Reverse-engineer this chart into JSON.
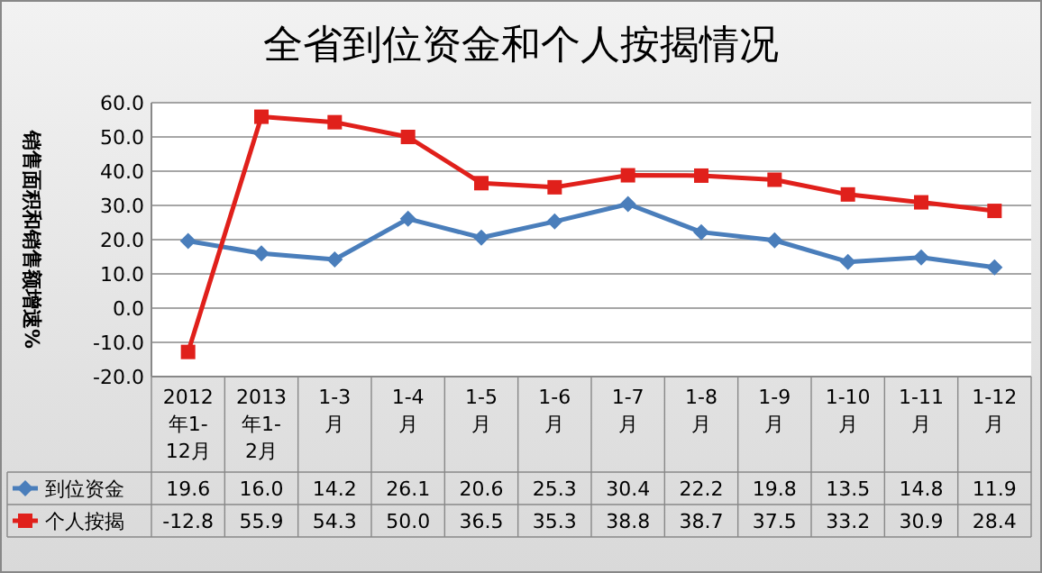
{
  "chart_data": {
    "type": "line",
    "title": "全省到位资金和个人按揭情况",
    "ylabel": "销售面积和销售额增速%",
    "categories": [
      "2012年1-12月",
      "2013年1-2月",
      "1-3月",
      "1-4月",
      "1-5月",
      "1-6月",
      "1-7月",
      "1-8月",
      "1-9月",
      "1-10月",
      "1-11月",
      "1-12月"
    ],
    "series": [
      {
        "name": "到位资金",
        "color": "#4a7ebb",
        "marker": "diamond",
        "values": [
          19.6,
          16.0,
          14.2,
          26.1,
          20.6,
          25.3,
          30.4,
          22.2,
          19.8,
          13.5,
          14.8,
          11.9
        ],
        "value_labels": [
          "19.6",
          "16.0",
          "14.2",
          "26.1",
          "20.6",
          "25.3",
          "30.4",
          "22.2",
          "19.8",
          "13.5",
          "14.8",
          "11.9"
        ]
      },
      {
        "name": "个人按揭",
        "color": "#e0201b",
        "marker": "square",
        "values": [
          -12.8,
          55.9,
          54.3,
          50.0,
          36.5,
          35.3,
          38.8,
          38.7,
          37.5,
          33.2,
          30.9,
          28.4
        ],
        "value_labels": [
          "-12.8",
          "55.9",
          "54.3",
          "50.0",
          "36.5",
          "35.3",
          "38.8",
          "38.7",
          "37.5",
          "33.2",
          "30.9",
          "28.4"
        ]
      }
    ],
    "ylim": [
      -20,
      60
    ],
    "yticks": [
      {
        "value": -20,
        "label": "-20.0"
      },
      {
        "value": -10,
        "label": "-10.0"
      },
      {
        "value": 0,
        "label": "0.0"
      },
      {
        "value": 10,
        "label": "10.0"
      },
      {
        "value": 20,
        "label": "20.0"
      },
      {
        "value": 30,
        "label": "30.0"
      },
      {
        "value": 40,
        "label": "40.0"
      },
      {
        "value": 50,
        "label": "50.0"
      },
      {
        "value": 60,
        "label": "60.0"
      }
    ],
    "grid": "y",
    "legend": "bottom"
  }
}
